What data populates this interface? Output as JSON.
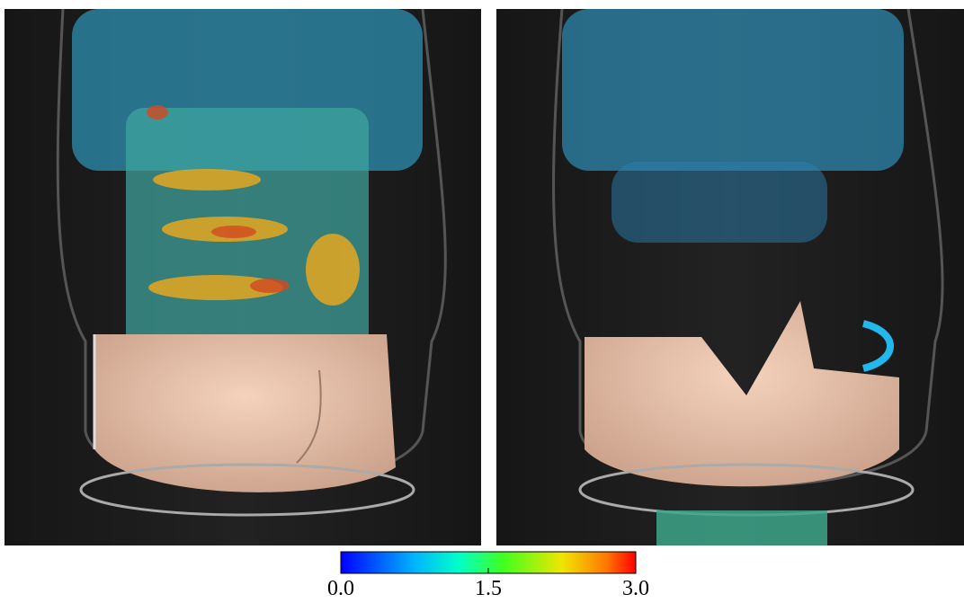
{
  "colorbar": {
    "range": [
      0,
      3
    ],
    "ticks": [
      {
        "value": 0,
        "label": "0.0"
      },
      {
        "value": 1.5,
        "label": "1.5"
      },
      {
        "value": 3,
        "label": "3.0"
      }
    ]
  }
}
